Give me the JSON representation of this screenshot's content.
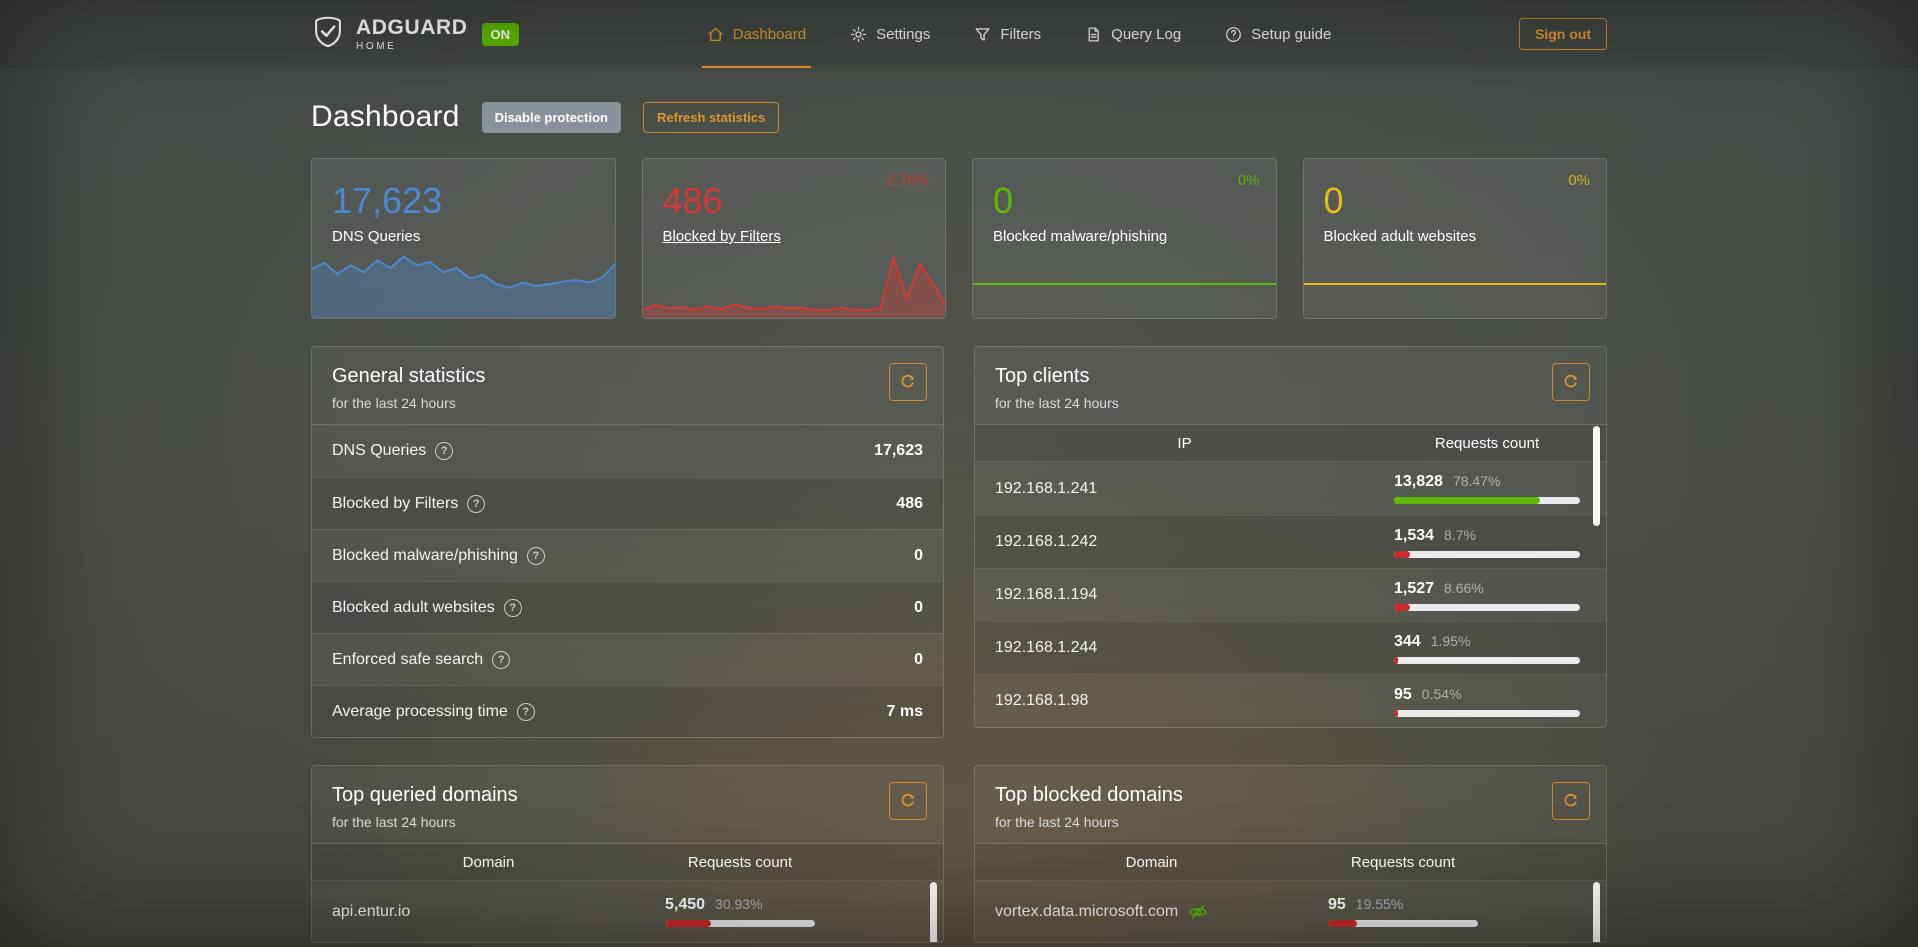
{
  "header": {
    "logo": {
      "brand": "ADGUARD",
      "sub": "HOME",
      "badge": "ON"
    },
    "nav": [
      {
        "label": "Dashboard"
      },
      {
        "label": "Settings"
      },
      {
        "label": "Filters"
      },
      {
        "label": "Query Log"
      },
      {
        "label": "Setup guide"
      }
    ],
    "sign_out": "Sign out"
  },
  "page": {
    "title": "Dashboard",
    "disable_protection": "Disable protection",
    "refresh_statistics": "Refresh statistics"
  },
  "cards": [
    {
      "value": "17,623",
      "label": "DNS Queries",
      "percent": "",
      "color": "#4a8ad1",
      "sparkline": [
        55,
        63,
        50,
        60,
        52,
        66,
        57,
        70,
        60,
        64,
        52,
        57,
        45,
        49,
        38,
        34,
        40,
        36,
        38,
        41,
        43,
        40,
        46,
        62
      ]
    },
    {
      "value": "486",
      "label": "Blocked by Filters",
      "percent": "2.76%",
      "color": "#d63a32",
      "sparkline": [
        10,
        18,
        13,
        15,
        11,
        16,
        12,
        19,
        14,
        12,
        16,
        13,
        14,
        11,
        10,
        14,
        11,
        10,
        13,
        90,
        28,
        80,
        50,
        15
      ]
    },
    {
      "value": "0",
      "label": "Blocked malware/phishing",
      "percent": "0%",
      "color": "#5eba00"
    },
    {
      "value": "0",
      "label": "Blocked adult websites",
      "percent": "0%",
      "color": "#e5bd17"
    }
  ],
  "panels": {
    "general": {
      "title": "General statistics",
      "subtitle": "for the last 24 hours",
      "rows": [
        {
          "label": "DNS Queries",
          "value": "17,623"
        },
        {
          "label": "Blocked by Filters",
          "value": "486"
        },
        {
          "label": "Blocked malware/phishing",
          "value": "0"
        },
        {
          "label": "Blocked adult websites",
          "value": "0"
        },
        {
          "label": "Enforced safe search",
          "value": "0"
        },
        {
          "label": "Average processing time",
          "value": "7 ms"
        }
      ]
    },
    "top_clients": {
      "title": "Top clients",
      "subtitle": "for the last 24 hours",
      "columns": [
        "IP",
        "Requests count"
      ],
      "rows": [
        {
          "ip": "192.168.1.241",
          "count": "13,828",
          "percent": "78.47%",
          "fill": 78.47,
          "bar_color": "#5eba00"
        },
        {
          "ip": "192.168.1.242",
          "count": "1,534",
          "percent": "8.7%",
          "fill": 8.7,
          "bar_color": "#cc2929"
        },
        {
          "ip": "192.168.1.194",
          "count": "1,527",
          "percent": "8.66%",
          "fill": 8.66,
          "bar_color": "#cc2929"
        },
        {
          "ip": "192.168.1.244",
          "count": "344",
          "percent": "1.95%",
          "fill": 1.95,
          "bar_color": "#cc2929"
        },
        {
          "ip": "192.168.1.98",
          "count": "95",
          "percent": "0.54%",
          "fill": 0.54,
          "bar_color": "#cc2929"
        }
      ]
    },
    "top_queried": {
      "title": "Top queried domains",
      "subtitle": "for the last 24 hours",
      "columns": [
        "Domain",
        "Requests count"
      ],
      "rows": [
        {
          "domain": "api.entur.io",
          "count": "5,450",
          "percent": "30.93%",
          "fill": 30.93,
          "bar_color": "#cc2929"
        }
      ]
    },
    "top_blocked": {
      "title": "Top blocked domains",
      "subtitle": "for the last 24 hours",
      "columns": [
        "Domain",
        "Requests count"
      ],
      "rows": [
        {
          "domain": "vortex.data.microsoft.com",
          "icon": "eye-off-icon",
          "count": "95",
          "percent": "19.55%",
          "fill": 19.55,
          "bar_color": "#cc2929"
        }
      ]
    }
  },
  "chart_data": [
    {
      "type": "area",
      "title": "DNS Queries sparkline (last 24 hours)",
      "color": "#4a8ad1",
      "values": [
        55,
        63,
        50,
        60,
        52,
        66,
        57,
        70,
        60,
        64,
        52,
        57,
        45,
        49,
        38,
        34,
        40,
        36,
        38,
        41,
        43,
        40,
        46,
        62
      ]
    },
    {
      "type": "area",
      "title": "Blocked by Filters sparkline (last 24 hours)",
      "color": "#d63a32",
      "values": [
        10,
        18,
        13,
        15,
        11,
        16,
        12,
        19,
        14,
        12,
        16,
        13,
        14,
        11,
        10,
        14,
        11,
        10,
        13,
        90,
        28,
        80,
        50,
        15
      ]
    },
    {
      "type": "line",
      "title": "Blocked malware/phishing sparkline (flat zero)",
      "color": "#5eba00",
      "values": [
        0,
        0
      ]
    },
    {
      "type": "line",
      "title": "Blocked adult websites sparkline (flat zero)",
      "color": "#e5bd17",
      "values": [
        0,
        0
      ]
    }
  ]
}
